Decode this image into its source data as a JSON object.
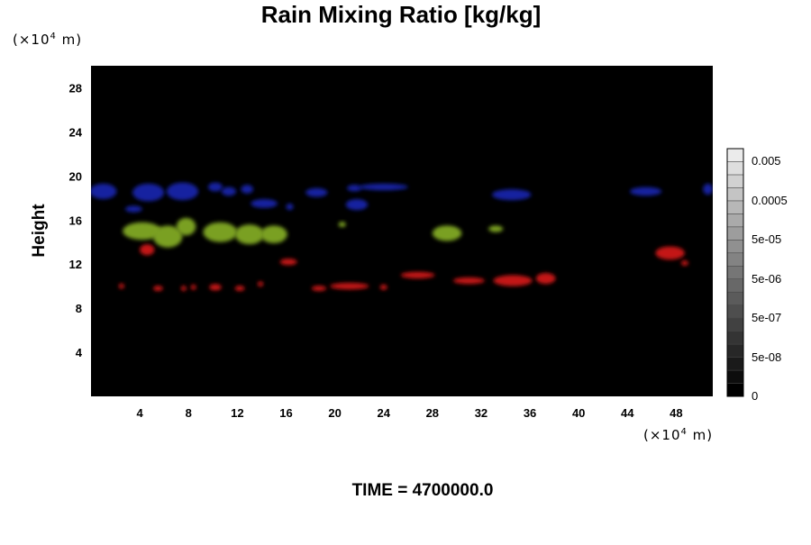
{
  "chart_data": {
    "type": "heatmap",
    "title": "Rain Mixing Ratio [kg/kg]",
    "ylabel": "Height",
    "xlabel": "",
    "x_unit_prefix": "(×10",
    "x_unit_exp": "4",
    "x_unit_suffix": " m)",
    "y_unit_prefix": "(×10",
    "y_unit_exp": "4",
    "y_unit_suffix": " m)",
    "xlim": [
      0,
      51
    ],
    "ylim": [
      0,
      30
    ],
    "x_ticks": [
      "4",
      "8",
      "12",
      "16",
      "20",
      "24",
      "28",
      "32",
      "36",
      "40",
      "44",
      "48"
    ],
    "y_ticks": [
      "4",
      "8",
      "12",
      "16",
      "20",
      "24",
      "28"
    ],
    "colorbar": {
      "labels": [
        "0.005",
        "0.0005",
        "5e-05",
        "5e-06",
        "5e-07",
        "5e-08",
        "0"
      ],
      "levels": 19
    },
    "background_color": "#000000",
    "series": [
      {
        "color": "#1620a0",
        "blobs": [
          {
            "x": 1.0,
            "y": 18.6,
            "rx": 1.1,
            "ry": 0.7
          },
          {
            "x": 3.5,
            "y": 17.0,
            "rx": 0.7,
            "ry": 0.3
          },
          {
            "x": 4.7,
            "y": 18.5,
            "rx": 1.3,
            "ry": 0.8
          },
          {
            "x": 7.5,
            "y": 18.6,
            "rx": 1.3,
            "ry": 0.8
          },
          {
            "x": 10.2,
            "y": 19.0,
            "rx": 0.6,
            "ry": 0.4
          },
          {
            "x": 11.3,
            "y": 18.6,
            "rx": 0.6,
            "ry": 0.4
          },
          {
            "x": 12.8,
            "y": 18.8,
            "rx": 0.5,
            "ry": 0.4
          },
          {
            "x": 14.2,
            "y": 17.5,
            "rx": 1.1,
            "ry": 0.4
          },
          {
            "x": 16.3,
            "y": 17.2,
            "rx": 0.3,
            "ry": 0.3
          },
          {
            "x": 18.5,
            "y": 18.5,
            "rx": 0.9,
            "ry": 0.4
          },
          {
            "x": 21.8,
            "y": 17.4,
            "rx": 0.9,
            "ry": 0.5
          },
          {
            "x": 21.6,
            "y": 18.9,
            "rx": 0.6,
            "ry": 0.3
          },
          {
            "x": 24.0,
            "y": 19.0,
            "rx": 2.0,
            "ry": 0.3
          },
          {
            "x": 34.5,
            "y": 18.3,
            "rx": 1.6,
            "ry": 0.5
          },
          {
            "x": 45.5,
            "y": 18.6,
            "rx": 1.3,
            "ry": 0.4
          },
          {
            "x": 50.6,
            "y": 18.8,
            "rx": 0.4,
            "ry": 0.5
          }
        ]
      },
      {
        "color": "#7aa020",
        "blobs": [
          {
            "x": 4.2,
            "y": 15.0,
            "rx": 1.6,
            "ry": 0.8
          },
          {
            "x": 6.3,
            "y": 14.5,
            "rx": 1.2,
            "ry": 1.0
          },
          {
            "x": 7.8,
            "y": 15.4,
            "rx": 0.8,
            "ry": 0.8
          },
          {
            "x": 10.6,
            "y": 14.9,
            "rx": 1.4,
            "ry": 0.9
          },
          {
            "x": 13.0,
            "y": 14.7,
            "rx": 1.2,
            "ry": 0.9
          },
          {
            "x": 15.0,
            "y": 14.7,
            "rx": 1.1,
            "ry": 0.8
          },
          {
            "x": 29.2,
            "y": 14.8,
            "rx": 1.2,
            "ry": 0.7
          },
          {
            "x": 33.2,
            "y": 15.2,
            "rx": 0.6,
            "ry": 0.3
          },
          {
            "x": 20.6,
            "y": 15.6,
            "rx": 0.3,
            "ry": 0.2
          }
        ]
      },
      {
        "color": "#c41818",
        "blobs": [
          {
            "x": 4.6,
            "y": 13.3,
            "rx": 0.6,
            "ry": 0.5
          },
          {
            "x": 16.2,
            "y": 12.2,
            "rx": 0.7,
            "ry": 0.3
          },
          {
            "x": 2.5,
            "y": 10.0,
            "rx": 0.2,
            "ry": 0.2
          },
          {
            "x": 5.5,
            "y": 9.8,
            "rx": 0.4,
            "ry": 0.2
          },
          {
            "x": 7.6,
            "y": 9.8,
            "rx": 0.2,
            "ry": 0.2
          },
          {
            "x": 8.4,
            "y": 9.9,
            "rx": 0.2,
            "ry": 0.2
          },
          {
            "x": 10.2,
            "y": 9.9,
            "rx": 0.5,
            "ry": 0.3
          },
          {
            "x": 12.2,
            "y": 9.8,
            "rx": 0.4,
            "ry": 0.2
          },
          {
            "x": 13.9,
            "y": 10.2,
            "rx": 0.2,
            "ry": 0.2
          },
          {
            "x": 18.7,
            "y": 9.8,
            "rx": 0.6,
            "ry": 0.2
          },
          {
            "x": 21.2,
            "y": 10.0,
            "rx": 1.6,
            "ry": 0.3
          },
          {
            "x": 24.0,
            "y": 9.9,
            "rx": 0.3,
            "ry": 0.2
          },
          {
            "x": 26.8,
            "y": 11.0,
            "rx": 1.4,
            "ry": 0.3
          },
          {
            "x": 31.0,
            "y": 10.5,
            "rx": 1.3,
            "ry": 0.3
          },
          {
            "x": 34.6,
            "y": 10.5,
            "rx": 1.6,
            "ry": 0.5
          },
          {
            "x": 37.3,
            "y": 10.7,
            "rx": 0.8,
            "ry": 0.5
          },
          {
            "x": 47.5,
            "y": 13.0,
            "rx": 1.2,
            "ry": 0.6
          },
          {
            "x": 48.7,
            "y": 12.1,
            "rx": 0.3,
            "ry": 0.2
          }
        ]
      }
    ]
  },
  "footer": {
    "time_label": "TIME = 4700000.0"
  }
}
